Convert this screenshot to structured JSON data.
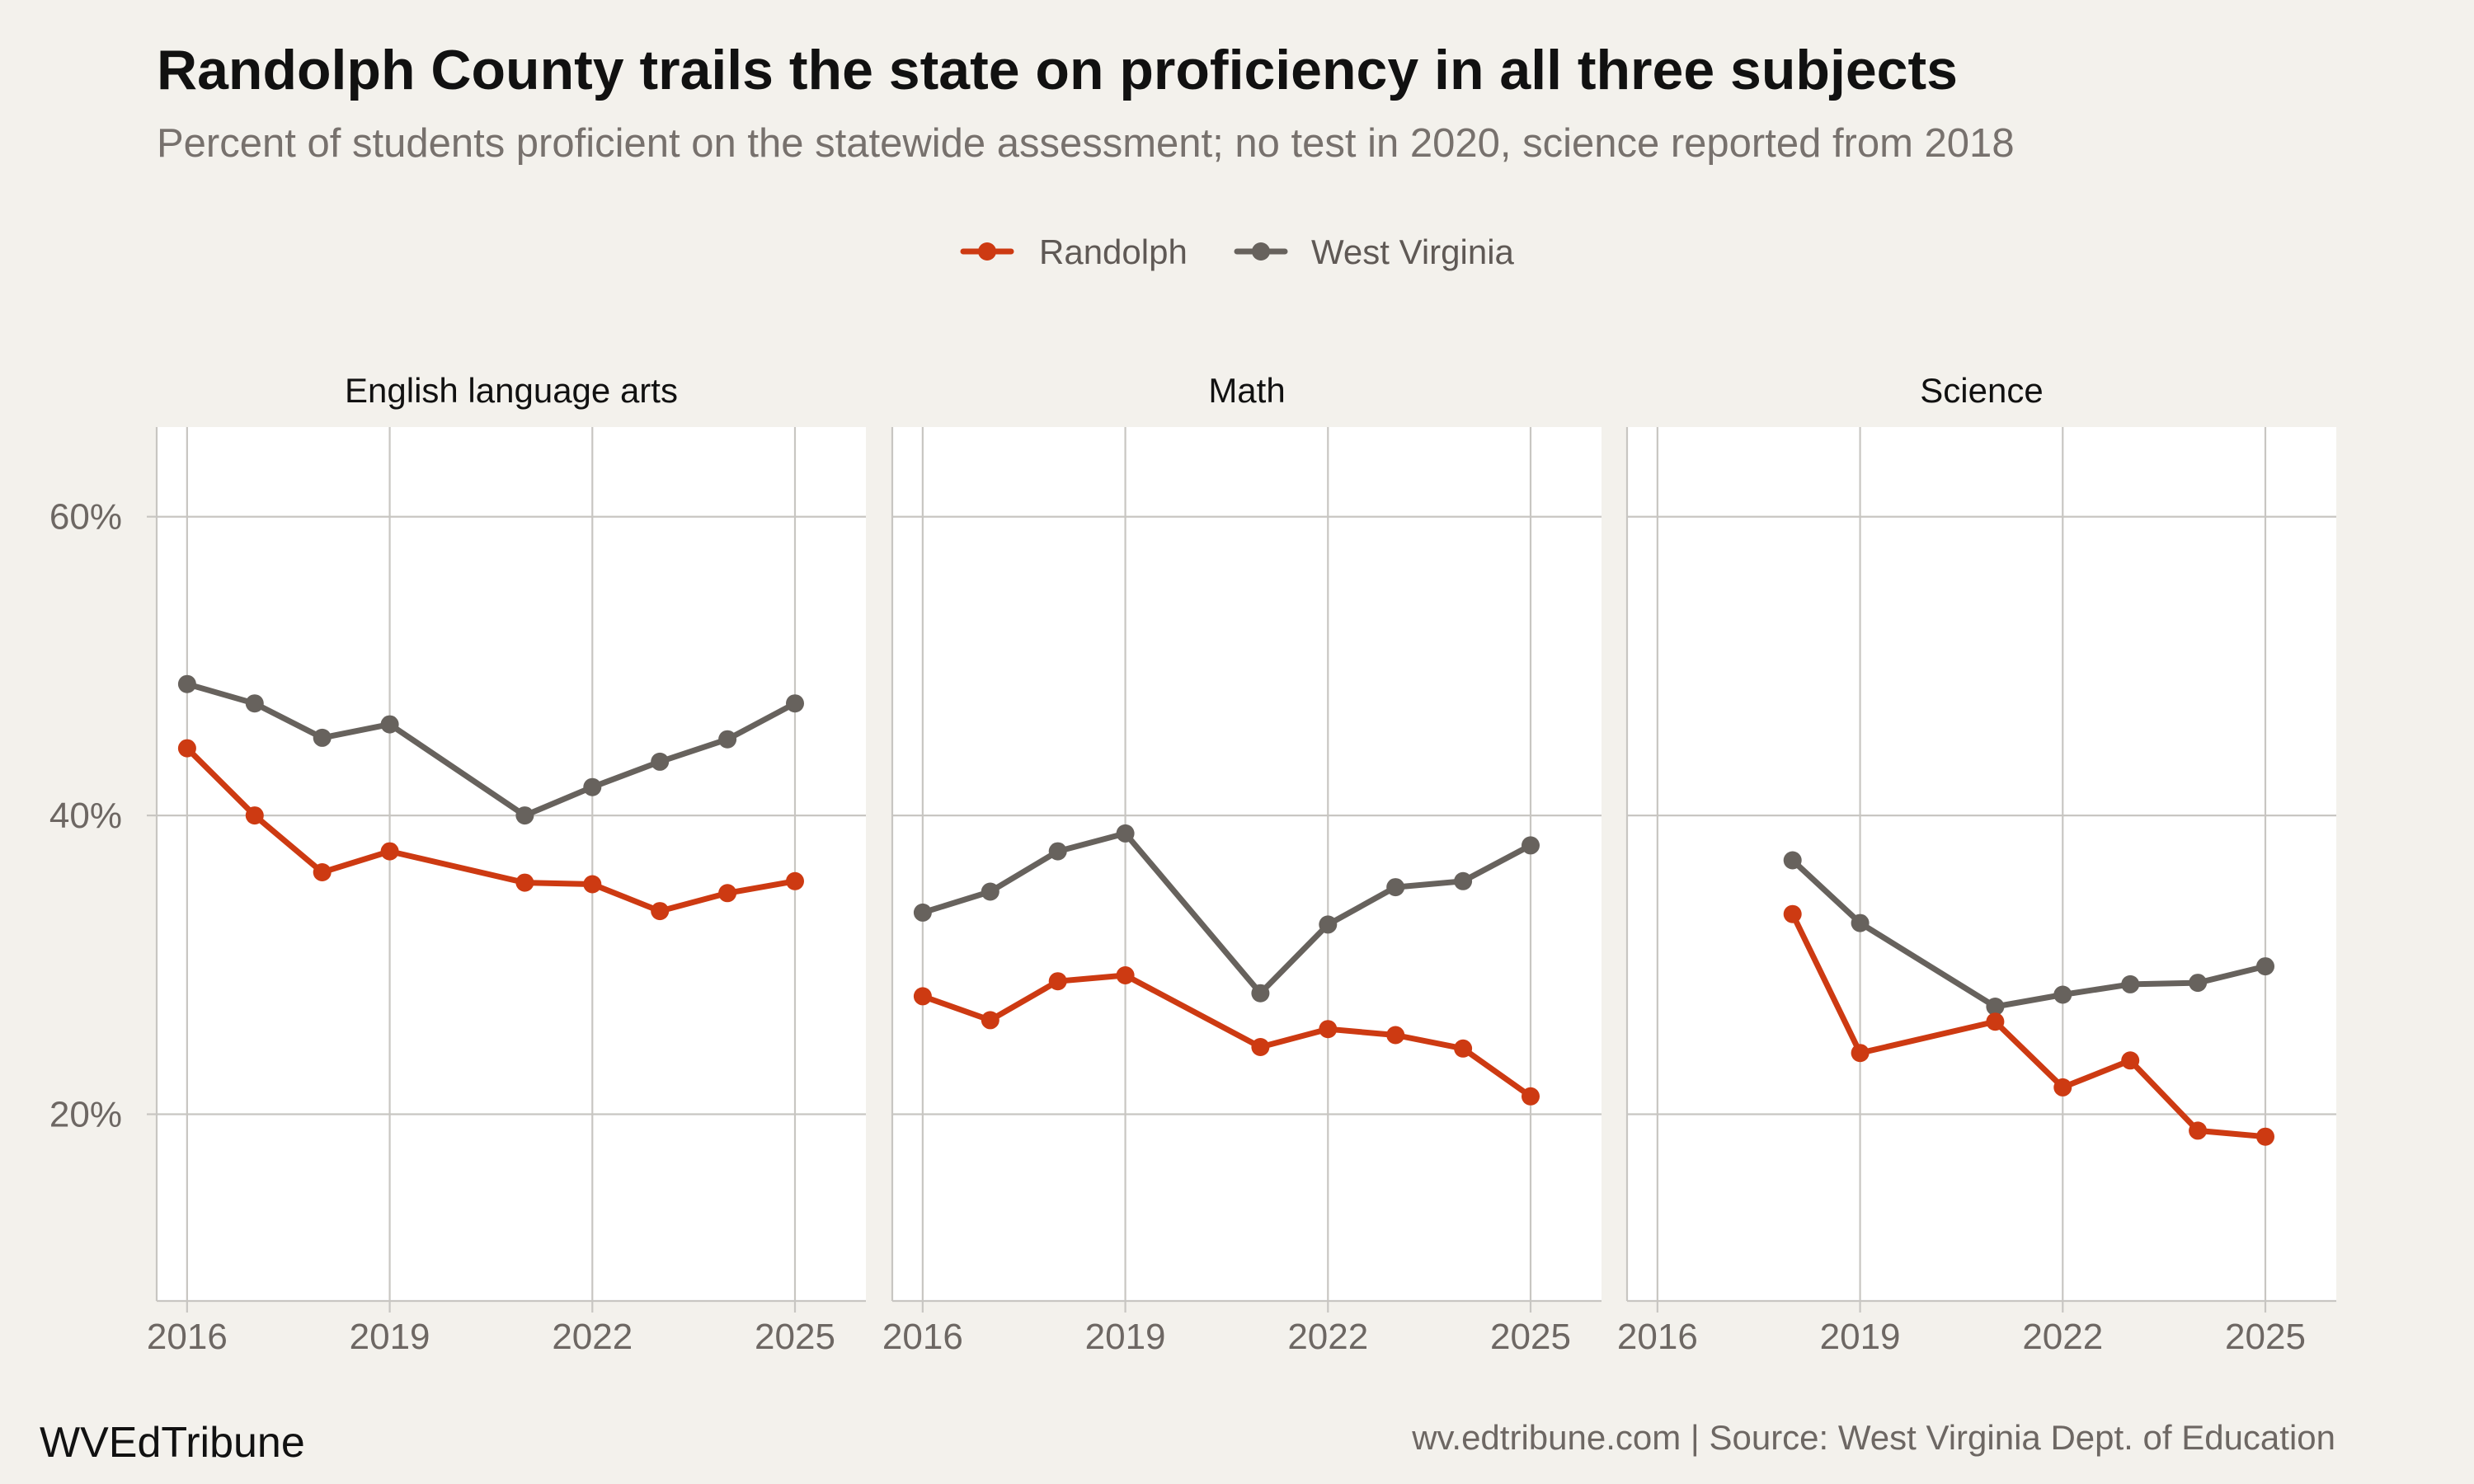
{
  "title": "Randolph County trails the state on proficiency in all three subjects",
  "subtitle": "Percent of students proficient on the statewide assessment; no test in 2020, science reported from 2018",
  "footer": {
    "brand": "WVEdTribune",
    "source": "wv.edtribune.com | Source: West Virginia Dept. of Education"
  },
  "colors": {
    "background": "#f3f1ec",
    "panel": "#ffffff",
    "grid": "#c8c6c2",
    "randolph": "#cd3a12",
    "west_virginia": "#67625d"
  },
  "chart_data": {
    "type": "line",
    "legend": {
      "position": "top",
      "entries": [
        "Randolph",
        "West Virginia"
      ]
    },
    "x_axis": {
      "ticks": [
        2016,
        2019,
        2022,
        2025
      ],
      "tick_labels": [
        "2016",
        "2019",
        "2022",
        "2025"
      ],
      "range": [
        2015.55,
        2026.05
      ]
    },
    "y_axis": {
      "ticks": [
        20,
        40,
        60
      ],
      "tick_labels": [
        "20%",
        "40%",
        "60%"
      ],
      "range": [
        7.5,
        66
      ]
    },
    "grid": true,
    "panels": [
      {
        "title": "English language arts",
        "series": [
          {
            "name": "Randolph",
            "color": "#cd3a12",
            "x": [
              2016,
              2017,
              2018,
              2019,
              2021,
              2022,
              2023,
              2024,
              2025
            ],
            "y": [
              44.5,
              40,
              36.2,
              37.6,
              35.5,
              35.4,
              33.6,
              34.8,
              35.6
            ]
          },
          {
            "name": "West Virginia",
            "color": "#67625d",
            "x": [
              2016,
              2017,
              2018,
              2019,
              2021,
              2022,
              2023,
              2024,
              2025
            ],
            "y": [
              48.8,
              47.5,
              45.2,
              46.1,
              40,
              41.9,
              43.6,
              45.1,
              47.5
            ]
          }
        ]
      },
      {
        "title": "Math",
        "series": [
          {
            "name": "Randolph",
            "color": "#cd3a12",
            "x": [
              2016,
              2017,
              2018,
              2019,
              2021,
              2022,
              2023,
              2024,
              2025
            ],
            "y": [
              27.9,
              26.3,
              28.9,
              29.3,
              24.5,
              25.7,
              25.3,
              24.4,
              21.2
            ]
          },
          {
            "name": "West Virginia",
            "color": "#67625d",
            "x": [
              2016,
              2017,
              2018,
              2019,
              2021,
              2022,
              2023,
              2024,
              2025
            ],
            "y": [
              33.5,
              34.9,
              37.6,
              38.8,
              28.1,
              32.7,
              35.2,
              35.6,
              38
            ]
          }
        ]
      },
      {
        "title": "Science",
        "series": [
          {
            "name": "Randolph",
            "color": "#cd3a12",
            "x": [
              2018,
              2019,
              2021,
              2022,
              2023,
              2024,
              2025
            ],
            "y": [
              33.4,
              24.1,
              26.2,
              21.8,
              23.6,
              18.9,
              18.5
            ]
          },
          {
            "name": "West Virginia",
            "color": "#67625d",
            "x": [
              2018,
              2019,
              2021,
              2022,
              2023,
              2024,
              2025
            ],
            "y": [
              37,
              32.8,
              27.2,
              28,
              28.7,
              28.8,
              29.9
            ]
          }
        ]
      }
    ]
  }
}
